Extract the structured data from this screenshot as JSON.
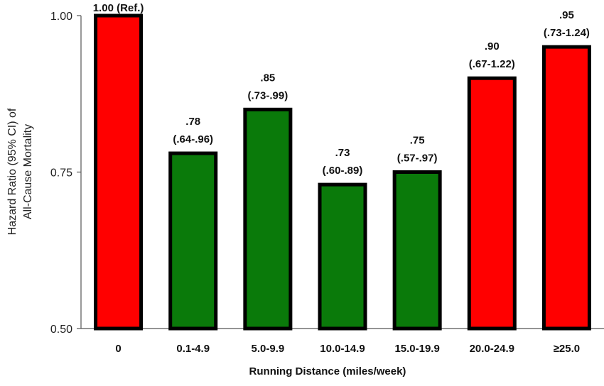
{
  "chart_data": {
    "type": "bar",
    "title": "",
    "xlabel": "Running Distance (miles/week)",
    "ylabel_lines": [
      "Hazard Ratio (95% CI) of",
      "All-Cause Mortality"
    ],
    "ylim": [
      0.5,
      1.0
    ],
    "yticks": [
      0.5,
      0.75,
      1.0
    ],
    "ytick_labels": [
      "0.50",
      "0.75",
      "1.00"
    ],
    "grid": false,
    "legend": "none",
    "categories": [
      "0",
      "0.1-4.9",
      "5.0-9.9",
      "10.0-14.9",
      "15.0-19.9",
      "20.0-24.9",
      "≥25.0"
    ],
    "values": [
      1.0,
      0.78,
      0.85,
      0.73,
      0.75,
      0.9,
      0.95
    ],
    "label_top": [
      "1.00 (Ref.)",
      ".78",
      ".85",
      ".73",
      ".75",
      ".90",
      ".95"
    ],
    "label_bottom": [
      "",
      "(.64-.96)",
      "(.73-.99)",
      "(.60-.89)",
      "(.57-.97)",
      "(.67-1.22)",
      "(.73-1.24)"
    ],
    "colors": [
      "#ff0000",
      "#0a7a0a",
      "#0a7a0a",
      "#0a7a0a",
      "#0a7a0a",
      "#ff0000",
      "#ff0000"
    ],
    "border_color": "#000000"
  }
}
